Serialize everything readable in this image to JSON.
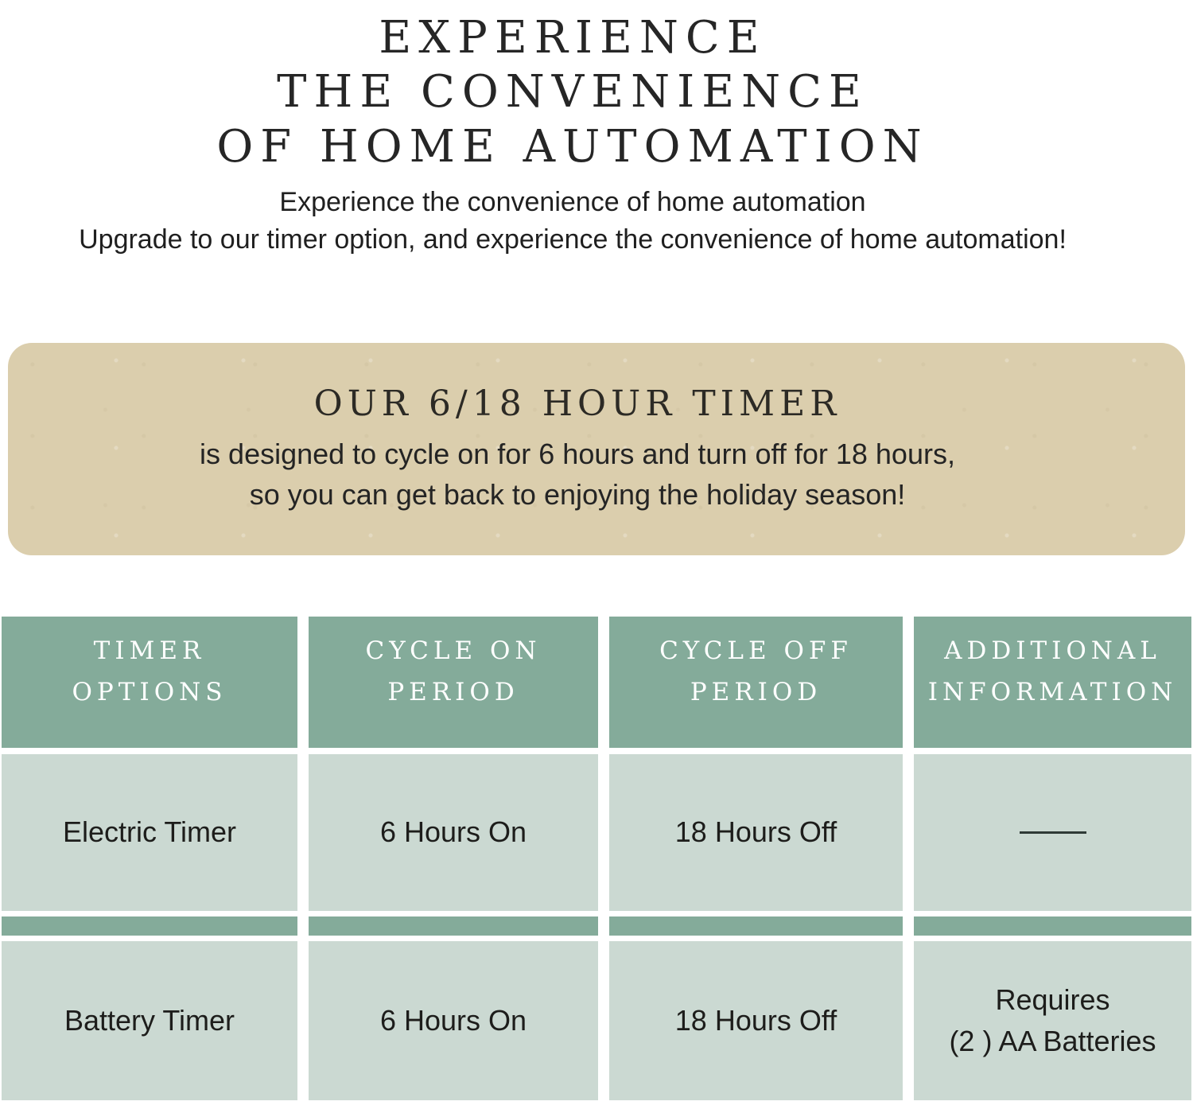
{
  "hero": {
    "title_lines": [
      "EXPERIENCE",
      "THE CONVENIENCE",
      "OF HOME AUTOMATION"
    ],
    "subtitle_lines": [
      "Experience the convenience of home automation",
      "Upgrade to our timer option, and experience the convenience of home automation!"
    ]
  },
  "banner": {
    "heading": "OUR 6/18 HOUR TIMER",
    "body_lines": [
      "is designed to cycle on for 6 hours and turn off for 18 hours,",
      "so you can get back to enjoying the holiday season!"
    ],
    "background_color": "#dbcead"
  },
  "table": {
    "headers": [
      {
        "line1": "TIMER",
        "line2": "OPTIONS"
      },
      {
        "line1": "CYCLE ON",
        "line2": "PERIOD"
      },
      {
        "line1": "CYCLE OFF",
        "line2": "PERIOD"
      },
      {
        "line1": "ADDITIONAL",
        "line2": "INFORMATION"
      }
    ],
    "rows": [
      {
        "timer_option": "Electric Timer",
        "cycle_on": "6 Hours On",
        "cycle_off": "18 Hours Off",
        "additional_info_icon": "horizontal-line"
      },
      {
        "timer_option": "Battery Timer",
        "cycle_on": "6 Hours On",
        "cycle_off": "18 Hours Off",
        "additional_info_line1": "Requires",
        "additional_info_line2": "(2 ) AA Batteries"
      }
    ],
    "colors": {
      "header_background": "#84ab9a",
      "row_background": "#cbd9d2",
      "separator_background": "#84ab9a",
      "header_text": "#ffffff",
      "cell_text": "#1d1d1b"
    }
  }
}
